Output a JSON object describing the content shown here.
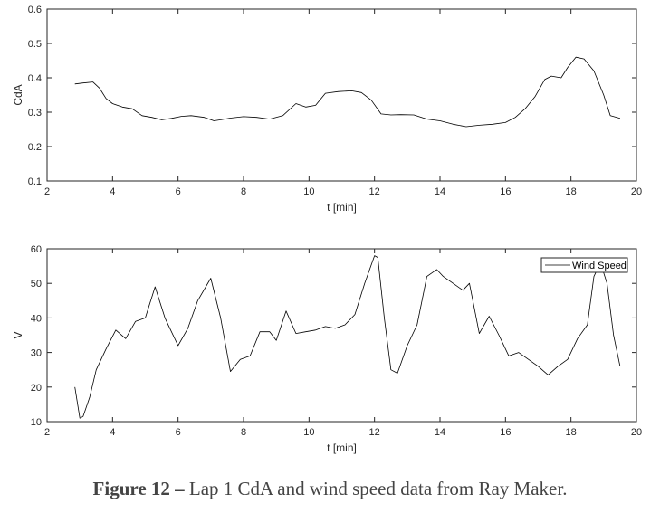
{
  "caption": {
    "label": "Figure 12 –",
    "text": "Lap 1 CdA and wind speed data from Ray Maker."
  },
  "chart_data": [
    {
      "type": "line",
      "xlabel": "t [min]",
      "ylabel": "CdA",
      "xlim": [
        2,
        20
      ],
      "ylim": [
        0.1,
        0.6
      ],
      "xticks": [
        2,
        4,
        6,
        8,
        10,
        12,
        14,
        16,
        18,
        20
      ],
      "yticks": [
        0.1,
        0.2,
        0.3,
        0.4,
        0.5,
        0.6
      ],
      "grid": false,
      "series": [
        {
          "color": "#000000",
          "x": [
            2.85,
            3.1,
            3.4,
            3.6,
            3.8,
            4.0,
            4.3,
            4.6,
            4.9,
            5.2,
            5.5,
            5.8,
            6.1,
            6.4,
            6.8,
            7.1,
            7.3,
            7.6,
            8.0,
            8.4,
            8.8,
            9.2,
            9.6,
            9.9,
            10.2,
            10.5,
            10.9,
            11.3,
            11.6,
            11.9,
            12.2,
            12.5,
            12.8,
            13.2,
            13.6,
            14.0,
            14.4,
            14.8,
            15.2,
            15.6,
            16.0,
            16.3,
            16.6,
            16.9,
            17.2,
            17.4,
            17.7,
            17.9,
            18.15,
            18.4,
            18.7,
            19.0,
            19.2,
            19.5
          ],
          "y": [
            0.382,
            0.385,
            0.388,
            0.37,
            0.34,
            0.325,
            0.315,
            0.31,
            0.29,
            0.285,
            0.278,
            0.282,
            0.288,
            0.29,
            0.285,
            0.275,
            0.278,
            0.283,
            0.287,
            0.285,
            0.28,
            0.29,
            0.325,
            0.315,
            0.32,
            0.355,
            0.36,
            0.362,
            0.357,
            0.335,
            0.295,
            0.292,
            0.293,
            0.292,
            0.28,
            0.275,
            0.265,
            0.258,
            0.262,
            0.265,
            0.27,
            0.285,
            0.31,
            0.345,
            0.395,
            0.405,
            0.4,
            0.43,
            0.46,
            0.455,
            0.42,
            0.35,
            0.29,
            0.282
          ]
        }
      ]
    },
    {
      "type": "line",
      "xlabel": "t [min]",
      "ylabel": "V",
      "xlim": [
        2,
        20
      ],
      "ylim": [
        10,
        60
      ],
      "xticks": [
        2,
        4,
        6,
        8,
        10,
        12,
        14,
        16,
        18,
        20
      ],
      "yticks": [
        10,
        20,
        30,
        40,
        50,
        60
      ],
      "grid": false,
      "legend": {
        "position": "top-right",
        "entries": [
          "Wind Speed"
        ]
      },
      "series": [
        {
          "name": "Wind Speed",
          "color": "#000000",
          "x": [
            2.85,
            3.0,
            3.1,
            3.3,
            3.5,
            3.8,
            4.1,
            4.4,
            4.7,
            5.0,
            5.3,
            5.6,
            5.8,
            6.0,
            6.3,
            6.6,
            7.0,
            7.3,
            7.6,
            7.9,
            8.2,
            8.5,
            8.8,
            9.0,
            9.3,
            9.6,
            9.9,
            10.2,
            10.5,
            10.8,
            11.1,
            11.4,
            11.7,
            12.0,
            12.1,
            12.3,
            12.5,
            12.7,
            13.0,
            13.3,
            13.6,
            13.9,
            14.1,
            14.4,
            14.7,
            14.9,
            15.2,
            15.5,
            15.8,
            16.1,
            16.4,
            16.7,
            17.0,
            17.3,
            17.6,
            17.9,
            18.2,
            18.5,
            18.7,
            18.9,
            19.1,
            19.3,
            19.5
          ],
          "y": [
            20,
            11,
            11.5,
            17,
            25,
            31,
            36.5,
            34,
            39,
            40,
            49,
            40,
            36,
            32,
            37,
            45,
            51.5,
            40,
            24.5,
            28,
            29,
            36,
            36,
            33.5,
            42,
            35.5,
            36,
            36.5,
            37.5,
            37,
            38,
            41,
            50,
            58,
            57.5,
            40,
            25,
            24,
            32,
            38,
            52,
            54,
            52,
            50,
            48,
            50,
            35.5,
            40.5,
            35,
            29,
            30,
            28,
            26,
            23.5,
            26,
            28,
            34,
            38,
            52,
            56,
            50,
            35,
            26
          ]
        }
      ]
    }
  ]
}
